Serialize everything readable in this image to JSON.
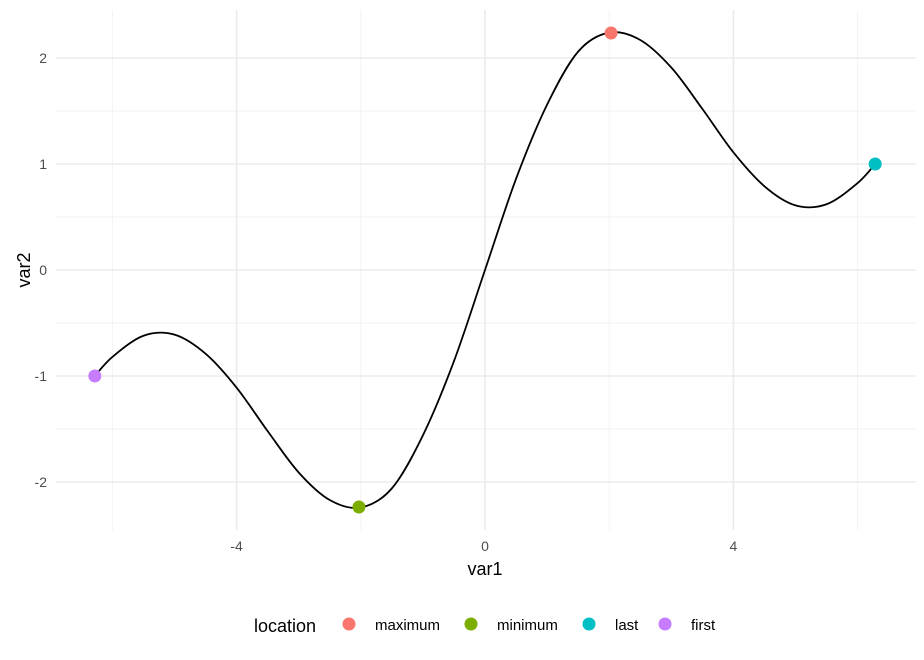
{
  "chart_data": {
    "type": "line",
    "title": "",
    "xlabel": "var1",
    "ylabel": "var2",
    "xlim": [
      -6.283,
      6.283
    ],
    "ylim": [
      -2.236,
      2.236
    ],
    "x_ticks": [
      -4,
      0,
      4
    ],
    "x_tick_labels": [
      "-4",
      "0",
      "4"
    ],
    "y_ticks": [
      -2,
      -1,
      0,
      1,
      2
    ],
    "y_tick_labels": [
      "-2",
      "-1",
      "0",
      "1",
      "2"
    ],
    "grid": true,
    "line": {
      "color": "#000000",
      "x": [
        -6.283,
        -6.0,
        -5.5,
        -5.0,
        -4.5,
        -4.0,
        -3.5,
        -3.0,
        -2.5,
        -2.0,
        -1.5,
        -1.0,
        -0.5,
        0.0,
        0.5,
        1.0,
        1.5,
        2.0,
        2.5,
        3.0,
        3.5,
        4.0,
        4.5,
        5.0,
        5.5,
        6.0,
        6.283
      ],
      "y": [
        -1.0,
        -0.82,
        -0.62,
        -0.61,
        -0.79,
        -1.11,
        -1.52,
        -1.91,
        -2.17,
        -2.24,
        -2.06,
        -1.56,
        -0.86,
        0.0,
        0.86,
        1.56,
        2.06,
        2.24,
        2.17,
        1.91,
        1.52,
        1.11,
        0.79,
        0.61,
        0.62,
        0.82,
        1.0
      ]
    },
    "points": [
      {
        "location": "maximum",
        "x": 2.03,
        "y": 2.236,
        "color": "#F8766D"
      },
      {
        "location": "minimum",
        "x": -2.03,
        "y": -2.236,
        "color": "#7CAE00"
      },
      {
        "location": "last",
        "x": 6.283,
        "y": 1.0,
        "color": "#00BFC4"
      },
      {
        "location": "first",
        "x": -6.283,
        "y": -1.0,
        "color": "#C77CFF"
      }
    ],
    "legend": {
      "title": "location",
      "position": "bottom",
      "entries": [
        {
          "label": "maximum",
          "color": "#F8766D"
        },
        {
          "label": "minimum",
          "color": "#7CAE00"
        },
        {
          "label": "last",
          "color": "#00BFC4"
        },
        {
          "label": "first",
          "color": "#C77CFF"
        }
      ]
    }
  }
}
